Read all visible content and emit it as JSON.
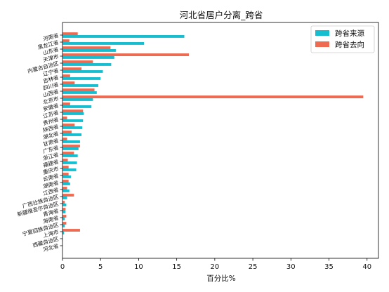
{
  "chart_data": {
    "type": "bar",
    "orientation": "horizontal",
    "title": "河北省居户分离_跨省",
    "xlabel": "百分比%",
    "ylabel": "",
    "xlim": [
      0,
      41.5
    ],
    "xticks": [
      0,
      5,
      10,
      15,
      20,
      25,
      30,
      35,
      40
    ],
    "grid": false,
    "legend_position": "top-right",
    "categories": [
      "河南省",
      "黑龙江省",
      "山东省",
      "天津市",
      "内蒙古自治区",
      "辽宁省",
      "吉林省",
      "四川省",
      "山西省",
      "北京市",
      "安徽省",
      "江苏省",
      "贵州省",
      "陕西省",
      "湖北省",
      "甘肃省",
      "广东省",
      "浙江省",
      "福建省",
      "重庆市",
      "云南省",
      "湖南省",
      "江西省",
      "广西壮族自治区",
      "新疆维吾尔自治区",
      "青海省",
      "海南省",
      "宁夏回族自治区",
      "上海市",
      "西藏自治区",
      "河北省"
    ],
    "series": [
      {
        "name": "跨省来源",
        "color": "#17becf",
        "values": [
          16.0,
          10.7,
          7.0,
          6.8,
          6.4,
          5.3,
          5.0,
          4.7,
          4.5,
          4.0,
          3.8,
          2.8,
          2.7,
          2.6,
          2.5,
          2.3,
          2.1,
          2.0,
          1.9,
          1.8,
          1.1,
          1.0,
          0.9,
          0.6,
          0.5,
          0.4,
          0.3,
          0.3,
          0.2,
          0.05,
          0
        ]
      },
      {
        "name": "跨省去向",
        "color": "#ee6a50",
        "values": [
          2.0,
          0.9,
          6.3,
          16.6,
          4.0,
          2.5,
          1.0,
          1.6,
          4.2,
          39.5,
          1.0,
          2.7,
          0.6,
          1.6,
          1.2,
          0.6,
          2.3,
          1.5,
          0.7,
          0.8,
          0.8,
          0.8,
          0.6,
          1.5,
          0.3,
          0.4,
          0.5,
          0.5,
          2.3,
          0,
          0
        ]
      }
    ]
  }
}
